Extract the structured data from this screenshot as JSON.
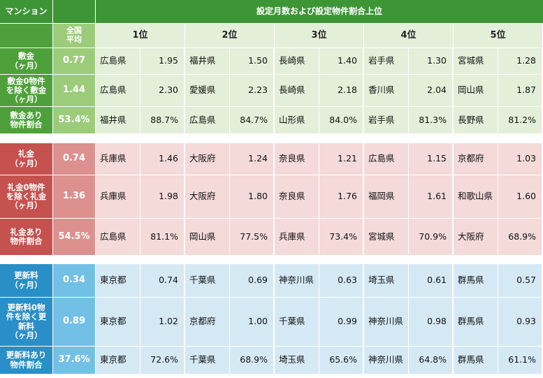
{
  "header": {
    "corner_label": "マンション",
    "title": "設定月数および設定物件割合上位",
    "avg_label": "全国\n平均",
    "ranks": [
      "1位",
      "2位",
      "3位",
      "4位",
      "5位"
    ]
  },
  "colors": {
    "header_green": "#3e9536",
    "green_label": "#4ea13a",
    "green_avg": "#9ccc7a",
    "green_cell": "#e3efd9",
    "red_label": "#c5524f",
    "red_avg": "#dc918f",
    "red_cell": "#f4dad8",
    "blue_label": "#2a8fc6",
    "blue_avg": "#73c0e6",
    "blue_cell": "#d5e9f4"
  },
  "sections": [
    {
      "id": "shikikin",
      "rows": [
        {
          "label": "敷金\n（ヶ月）",
          "avg": "0.77",
          "ranks": [
            [
              "広島県",
              "1.95"
            ],
            [
              "福井県",
              "1.50"
            ],
            [
              "長崎県",
              "1.40"
            ],
            [
              "岩手県",
              "1.30"
            ],
            [
              "宮城県",
              "1.28"
            ]
          ]
        },
        {
          "label": "敷金0物件\nを除く敷金\n（ヶ月）",
          "avg": "1.44",
          "ranks": [
            [
              "広島県",
              "2.30"
            ],
            [
              "愛媛県",
              "2.23"
            ],
            [
              "長崎県",
              "2.18"
            ],
            [
              "香川県",
              "2.04"
            ],
            [
              "岡山県",
              "1.87"
            ]
          ]
        },
        {
          "label": "敷金あり\n物件割合",
          "avg": "53.4%",
          "ranks": [
            [
              "福井県",
              "88.7%"
            ],
            [
              "広島県",
              "84.7%"
            ],
            [
              "山形県",
              "84.0%"
            ],
            [
              "岩手県",
              "81.3%"
            ],
            [
              "長野県",
              "81.2%"
            ]
          ]
        }
      ]
    },
    {
      "id": "reikin",
      "rows": [
        {
          "label": "礼金\n（ヶ月）",
          "avg": "0.74",
          "ranks": [
            [
              "兵庫県",
              "1.46"
            ],
            [
              "大阪府",
              "1.24"
            ],
            [
              "奈良県",
              "1.21"
            ],
            [
              "広島県",
              "1.15"
            ],
            [
              "京都府",
              "1.03"
            ]
          ]
        },
        {
          "label": "礼金0物件\nを除く礼金\n（ヶ月）",
          "avg": "1.36",
          "ranks": [
            [
              "兵庫県",
              "1.98"
            ],
            [
              "大阪府",
              "1.80"
            ],
            [
              "奈良県",
              "1.76"
            ],
            [
              "福岡県",
              "1.61"
            ],
            [
              "和歌山県",
              "1.60"
            ]
          ]
        },
        {
          "label": "礼金あり\n物件割合",
          "avg": "54.5%",
          "ranks": [
            [
              "広島県",
              "81.1%"
            ],
            [
              "岡山県",
              "77.5%"
            ],
            [
              "兵庫県",
              "73.4%"
            ],
            [
              "宮城県",
              "70.9%"
            ],
            [
              "大阪府",
              "68.9%"
            ]
          ]
        }
      ]
    },
    {
      "id": "koushinryo",
      "rows": [
        {
          "label": "更新料\n（ヶ月）",
          "avg": "0.34",
          "ranks": [
            [
              "東京都",
              "0.74"
            ],
            [
              "千葉県",
              "0.69"
            ],
            [
              "神奈川県",
              "0.63"
            ],
            [
              "埼玉県",
              "0.61"
            ],
            [
              "群馬県",
              "0.57"
            ]
          ]
        },
        {
          "label": "更新料0物\n件を除く更\n新料\n（ヶ月）",
          "avg": "0.89",
          "ranks": [
            [
              "東京都",
              "1.02"
            ],
            [
              "京都府",
              "1.00"
            ],
            [
              "千葉県",
              "0.99"
            ],
            [
              "神奈川県",
              "0.98"
            ],
            [
              "群馬県",
              "0.93"
            ]
          ]
        },
        {
          "label": "更新料あり\n物件割合",
          "avg": "37.6%",
          "ranks": [
            [
              "東京都",
              "72.6%"
            ],
            [
              "千葉県",
              "68.9%"
            ],
            [
              "埼玉県",
              "65.6%"
            ],
            [
              "神奈川県",
              "64.8%"
            ],
            [
              "群馬県",
              "61.1%"
            ]
          ]
        }
      ]
    }
  ]
}
